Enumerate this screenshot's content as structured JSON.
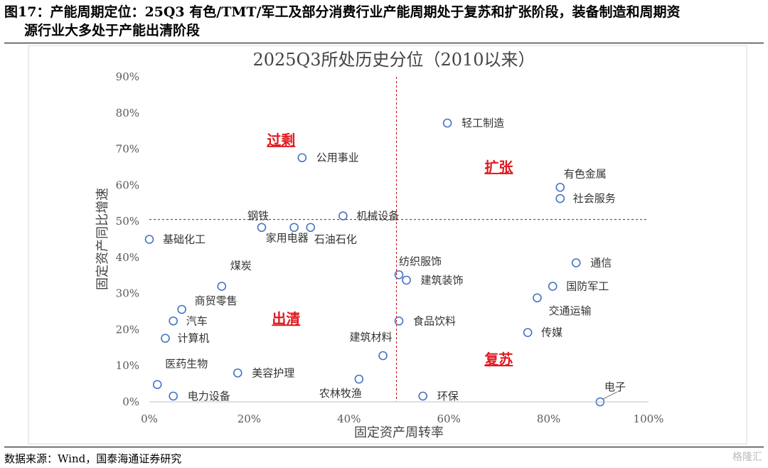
{
  "caption": {
    "line1": "图17：产能周期定位：25Q3 有色/TMT/军工及部分消费行业产能周期处于复苏和扩张阶段，装备制造和周期资",
    "line2": "源行业大多处于产能出清阶段"
  },
  "source_text": "数据来源：Wind，国泰海通证券研究",
  "watermark_text": "格隆汇",
  "chart_data": {
    "type": "scatter",
    "title": "2025Q3所处历史分位（2010以来）",
    "xlabel": "固定资产周转率",
    "ylabel": "固定资产同比增速",
    "xlim": [
      0,
      1
    ],
    "ylim": [
      0,
      0.9
    ],
    "x_ticks": [
      "0%",
      "20%",
      "40%",
      "60%",
      "80%",
      "100%"
    ],
    "y_ticks": [
      "0%",
      "10%",
      "20%",
      "30%",
      "40%",
      "50%",
      "60%",
      "70%",
      "80%",
      "90%"
    ],
    "grid": false,
    "marker_color": "#4472c4",
    "divider_color": "#c00000",
    "divider_x": 0.495,
    "divider_y": 0.505,
    "zones": [
      {
        "label": "过剩",
        "x": 0.264,
        "y": 0.725
      },
      {
        "label": "扩张",
        "x": 0.7,
        "y": 0.65
      },
      {
        "label": "出清",
        "x": 0.274,
        "y": 0.23
      },
      {
        "label": "复苏",
        "x": 0.7,
        "y": 0.118
      }
    ],
    "points": [
      {
        "name": "轻工制造",
        "x": 0.597,
        "y": 0.772
      },
      {
        "name": "公用事业",
        "x": 0.306,
        "y": 0.676
      },
      {
        "name": "有色金属",
        "x": 0.823,
        "y": 0.594
      },
      {
        "name": "社会服务",
        "x": 0.823,
        "y": 0.563
      },
      {
        "name": "机械设备",
        "x": 0.388,
        "y": 0.515
      },
      {
        "name": "钢铁",
        "x": 0.225,
        "y": 0.483
      },
      {
        "name": "家用电器",
        "x": 0.29,
        "y": 0.483
      },
      {
        "name": "石油石化",
        "x": 0.323,
        "y": 0.483
      },
      {
        "name": "基础化工",
        "x": 0.0,
        "y": 0.45
      },
      {
        "name": "通信",
        "x": 0.855,
        "y": 0.385
      },
      {
        "name": "纺织服饰",
        "x": 0.5,
        "y": 0.352
      },
      {
        "name": "建筑装饰",
        "x": 0.515,
        "y": 0.337
      },
      {
        "name": "国防军工",
        "x": 0.808,
        "y": 0.32
      },
      {
        "name": "煤炭",
        "x": 0.145,
        "y": 0.32
      },
      {
        "name": "交通运输",
        "x": 0.777,
        "y": 0.288
      },
      {
        "name": "商贸零售",
        "x": 0.065,
        "y": 0.256
      },
      {
        "name": "汽车",
        "x": 0.048,
        "y": 0.224
      },
      {
        "name": "食品饮料",
        "x": 0.5,
        "y": 0.224
      },
      {
        "name": "传媒",
        "x": 0.758,
        "y": 0.192
      },
      {
        "name": "计算机",
        "x": 0.032,
        "y": 0.176
      },
      {
        "name": "建筑材料",
        "x": 0.468,
        "y": 0.128
      },
      {
        "name": "美容护理",
        "x": 0.177,
        "y": 0.08
      },
      {
        "name": "农林牧渔",
        "x": 0.42,
        "y": 0.063
      },
      {
        "name": "医药生物",
        "x": 0.016,
        "y": 0.048
      },
      {
        "name": "电力设备",
        "x": 0.048,
        "y": 0.016
      },
      {
        "name": "环保",
        "x": 0.548,
        "y": 0.016
      },
      {
        "name": "电子",
        "x": 0.903,
        "y": 0.0
      }
    ]
  }
}
